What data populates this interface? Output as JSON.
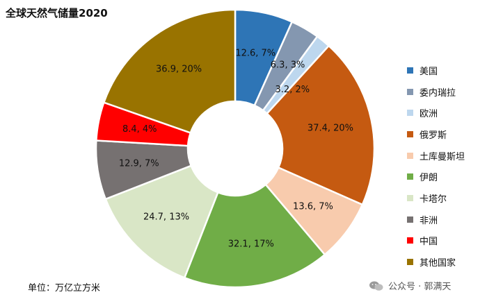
{
  "chart_data": {
    "type": "donut",
    "title": "全球天然气储量2020",
    "unit_label": "单位：万亿立方米",
    "slices": [
      {
        "name": "美国",
        "value": 12.6,
        "percent": 7,
        "label": "12.6, 7%",
        "color": "#2e75b6"
      },
      {
        "name": "委内瑞拉",
        "value": 6.3,
        "percent": 3,
        "label": "6.3, 3%",
        "color": "#8497b0"
      },
      {
        "name": "欧洲",
        "value": 3.2,
        "percent": 2,
        "label": "3.2, 2%",
        "color": "#bdd7ee"
      },
      {
        "name": "俄罗斯",
        "value": 37.4,
        "percent": 20,
        "label": "37.4, 20%",
        "color": "#c55a11"
      },
      {
        "name": "土库曼斯坦",
        "value": 13.6,
        "percent": 7,
        "label": "13.6, 7%",
        "color": "#f8cbad"
      },
      {
        "name": "伊朗",
        "value": 32.1,
        "percent": 17,
        "label": "32.1, 17%",
        "color": "#70ad47"
      },
      {
        "name": "卡塔尔",
        "value": 24.7,
        "percent": 13,
        "label": "24.7, 13%",
        "color": "#d9e6c6"
      },
      {
        "name": "非洲",
        "value": 12.9,
        "percent": 7,
        "label": "12.9, 7%",
        "color": "#767171"
      },
      {
        "name": "中国",
        "value": 8.4,
        "percent": 4,
        "label": "8.4, 4%",
        "color": "#ff0000"
      },
      {
        "name": "其他国家",
        "value": 36.9,
        "percent": 20,
        "label": "36.9, 20%",
        "color": "#997300"
      }
    ],
    "legend_names": [
      "美国",
      "委内瑞拉",
      "欧洲",
      "俄罗斯",
      "土库曼斯坦",
      "伊朗",
      "卡塔尔",
      "非洲",
      "中国",
      "其他国家"
    ]
  },
  "watermark": {
    "text": "公众号 · 郭满天",
    "icon": "wechat-icon"
  }
}
